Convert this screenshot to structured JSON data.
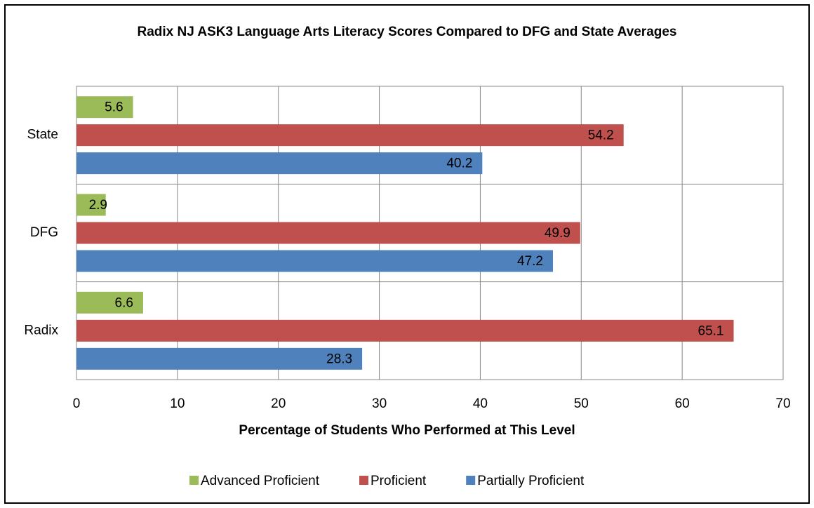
{
  "chart_data": {
    "type": "barh",
    "title": "Radix NJ ASK3 Language Arts Literacy Scores Compared to DFG and State Averages",
    "x_label": "Percentage of Students Who Performed at This Level",
    "categories": [
      "Radix",
      "DFG",
      "State"
    ],
    "series": [
      {
        "name": "Advanced Proficient",
        "color": "#9bbb59",
        "values": [
          6.6,
          2.9,
          5.6
        ]
      },
      {
        "name": "Proficient",
        "color": "#c0504d",
        "values": [
          65.1,
          49.9,
          54.2
        ]
      },
      {
        "name": "Partially Proficient",
        "color": "#4f81bd",
        "values": [
          28.3,
          47.2,
          40.2
        ]
      }
    ],
    "xlim": [
      0,
      70
    ],
    "xticks": [
      0,
      10,
      20,
      30,
      40,
      50,
      60,
      70
    ],
    "grid": true,
    "legend": "bottom"
  }
}
